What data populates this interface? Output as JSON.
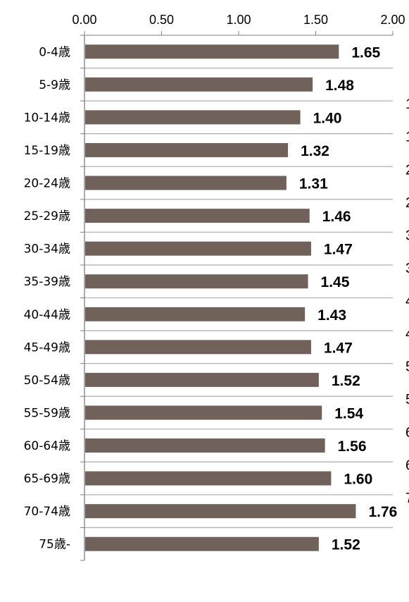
{
  "chart_data": {
    "type": "bar",
    "orientation": "horizontal",
    "categories": [
      "0-4歳",
      "5-9歳",
      "10-14歳",
      "15-19歳",
      "20-24歳",
      "25-29歳",
      "30-34歳",
      "35-39歳",
      "40-44歳",
      "45-49歳",
      "50-54歳",
      "55-59歳",
      "60-64歳",
      "65-69歳",
      "70-74歳",
      "75歳-"
    ],
    "values": [
      1.65,
      1.48,
      1.4,
      1.32,
      1.31,
      1.46,
      1.47,
      1.45,
      1.43,
      1.47,
      1.52,
      1.54,
      1.56,
      1.6,
      1.76,
      1.52
    ],
    "data_labels": [
      "1.65",
      "1.48",
      "1.40",
      "1.32",
      "1.31",
      "1.46",
      "1.47",
      "1.45",
      "1.43",
      "1.47",
      "1.52",
      "1.54",
      "1.56",
      "1.60",
      "1.76",
      "1.52"
    ],
    "x_ticks": [
      "0.00",
      "0.50",
      "1.00",
      "1.50",
      "2.00"
    ],
    "x_tick_values": [
      0,
      0.5,
      1.0,
      1.5,
      2.0
    ],
    "xlim": [
      0,
      2.0
    ],
    "x_axis_position": "top",
    "title": "",
    "xlabel": "",
    "ylabel": "",
    "grid": "horizontal separators between categories",
    "legend": "none",
    "bar_color": "#70615A",
    "axis_color": "#808080",
    "grid_color": "#B3B3B3",
    "clipped_right_labels": [
      "1",
      "1",
      "2",
      "2",
      "3",
      "3",
      "4",
      "4",
      "5",
      "5",
      "6",
      "6",
      "7"
    ]
  }
}
